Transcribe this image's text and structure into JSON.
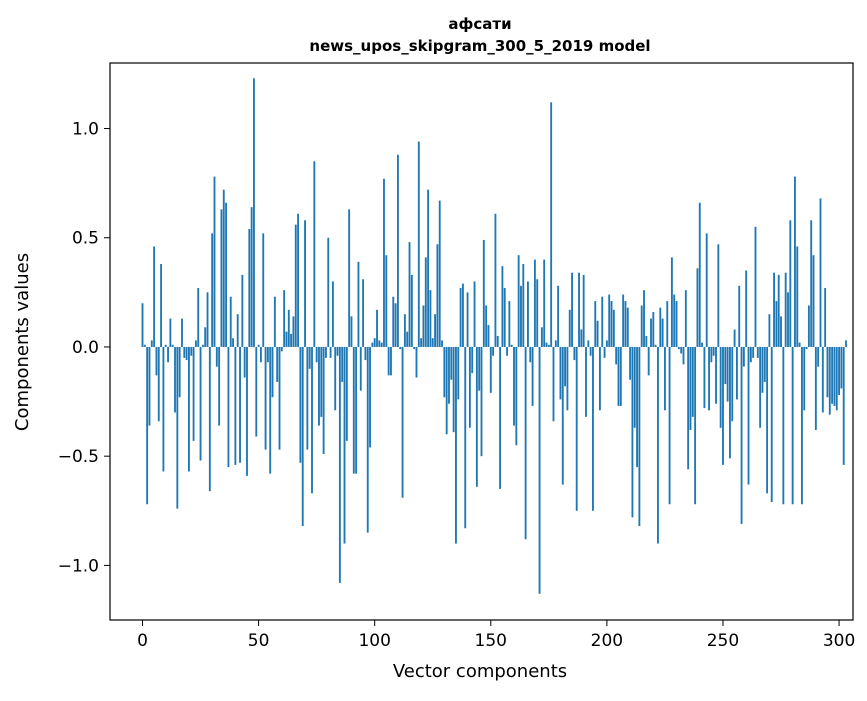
{
  "chart_data": {
    "type": "bar",
    "title": "афсати",
    "subtitle": "news_upos_skipgram_300_5_2019 model",
    "xlabel": "Vector components",
    "ylabel": "Components values",
    "xlim": [
      -14,
      306
    ],
    "ylim": [
      -1.25,
      1.3
    ],
    "grid": false,
    "bar_color": "#1f77b4",
    "xticks": [
      0,
      50,
      100,
      150,
      200,
      250,
      300
    ],
    "xtick_labels": [
      "0",
      "50",
      "100",
      "150",
      "200",
      "250",
      "300"
    ],
    "yticks": [
      -1.0,
      -0.5,
      0.0,
      0.5,
      1.0
    ],
    "ytick_labels": [
      "−1.0",
      "−0.5",
      "0.0",
      "0.5",
      "1.0"
    ],
    "values": [
      0.2,
      0.01,
      -0.72,
      -0.36,
      0.03,
      0.46,
      -0.13,
      -0.34,
      0.38,
      -0.57,
      0.01,
      -0.07,
      0.13,
      0.01,
      -0.3,
      -0.74,
      -0.23,
      0.13,
      -0.05,
      -0.06,
      -0.57,
      -0.04,
      -0.43,
      0.03,
      0.27,
      -0.52,
      0.01,
      0.09,
      0.25,
      -0.66,
      0.52,
      0.78,
      -0.09,
      -0.36,
      0.63,
      0.72,
      0.66,
      -0.55,
      0.23,
      0.04,
      -0.54,
      0.15,
      -0.53,
      0.33,
      -0.14,
      -0.59,
      0.54,
      0.64,
      1.23,
      -0.41,
      0.01,
      -0.07,
      0.52,
      -0.47,
      -0.07,
      -0.58,
      -0.23,
      0.23,
      -0.16,
      -0.47,
      -0.02,
      0.26,
      0.07,
      0.17,
      0.06,
      0.14,
      0.56,
      0.61,
      -0.53,
      -0.82,
      0.58,
      -0.47,
      -0.1,
      -0.67,
      0.85,
      -0.07,
      -0.36,
      -0.32,
      -0.49,
      -0.05,
      0.5,
      -0.05,
      0.3,
      -0.29,
      -0.04,
      -1.08,
      -0.16,
      -0.9,
      -0.43,
      0.63,
      0.14,
      -0.58,
      -0.58,
      0.39,
      -0.2,
      0.31,
      -0.06,
      -0.85,
      -0.46,
      0.02,
      0.04,
      0.17,
      0.03,
      0.02,
      0.77,
      0.42,
      -0.13,
      -0.13,
      0.23,
      0.2,
      0.88,
      -0.01,
      -0.69,
      0.15,
      0.07,
      0.48,
      0.33,
      -0.01,
      -0.14,
      0.94,
      0.04,
      0.19,
      0.41,
      0.72,
      0.26,
      0.04,
      0.15,
      0.47,
      0.67,
      0.03,
      -0.23,
      -0.4,
      -0.26,
      -0.15,
      -0.39,
      -0.9,
      -0.24,
      0.27,
      0.29,
      -0.83,
      0.25,
      -0.37,
      -0.12,
      0.3,
      -0.64,
      -0.2,
      -0.5,
      0.49,
      0.19,
      0.1,
      -0.21,
      -0.04,
      0.61,
      0.05,
      -0.65,
      0.37,
      0.27,
      -0.04,
      0.21,
      0.01,
      -0.36,
      -0.45,
      0.42,
      0.28,
      0.38,
      -0.88,
      0.3,
      -0.07,
      -0.27,
      0.4,
      0.31,
      -1.13,
      0.09,
      0.4,
      0.02,
      0.01,
      1.12,
      -0.34,
      0.03,
      0.28,
      -0.24,
      -0.63,
      -0.18,
      -0.29,
      0.17,
      0.34,
      -0.06,
      -0.75,
      0.34,
      0.08,
      0.33,
      -0.32,
      0.03,
      -0.04,
      -0.75,
      0.21,
      0.12,
      -0.29,
      0.23,
      -0.05,
      0.03,
      0.24,
      0.21,
      0.17,
      -0.08,
      -0.27,
      -0.27,
      0.24,
      0.21,
      0.18,
      -0.15,
      -0.78,
      -0.37,
      -0.55,
      -0.82,
      0.19,
      0.26,
      0.05,
      -0.13,
      0.13,
      0.16,
      0.01,
      -0.9,
      0.18,
      0.13,
      -0.29,
      0.21,
      -0.72,
      0.41,
      0.24,
      0.21,
      -0.01,
      -0.03,
      -0.08,
      0.26,
      -0.56,
      -0.38,
      -0.32,
      -0.72,
      0.36,
      0.66,
      0.02,
      -0.28,
      0.52,
      -0.29,
      -0.07,
      -0.04,
      -0.26,
      0.47,
      -0.37,
      -0.54,
      -0.17,
      -0.25,
      -0.51,
      -0.34,
      0.08,
      -0.24,
      0.28,
      -0.81,
      -0.09,
      0.35,
      -0.63,
      -0.07,
      -0.05,
      0.55,
      -0.05,
      -0.37,
      -0.21,
      -0.16,
      -0.67,
      0.15,
      -0.71,
      0.34,
      0.21,
      0.33,
      0.14,
      -0.72,
      0.34,
      0.25,
      0.58,
      -0.72,
      0.78,
      0.46,
      0.02,
      -0.72,
      -0.29,
      -0.01,
      0.19,
      0.58,
      0.42,
      -0.38,
      -0.09,
      0.68,
      -0.3,
      0.27,
      -0.23,
      -0.31,
      -0.26,
      -0.27,
      -0.29,
      -0.22,
      -0.19,
      -0.54,
      0.03
    ]
  }
}
